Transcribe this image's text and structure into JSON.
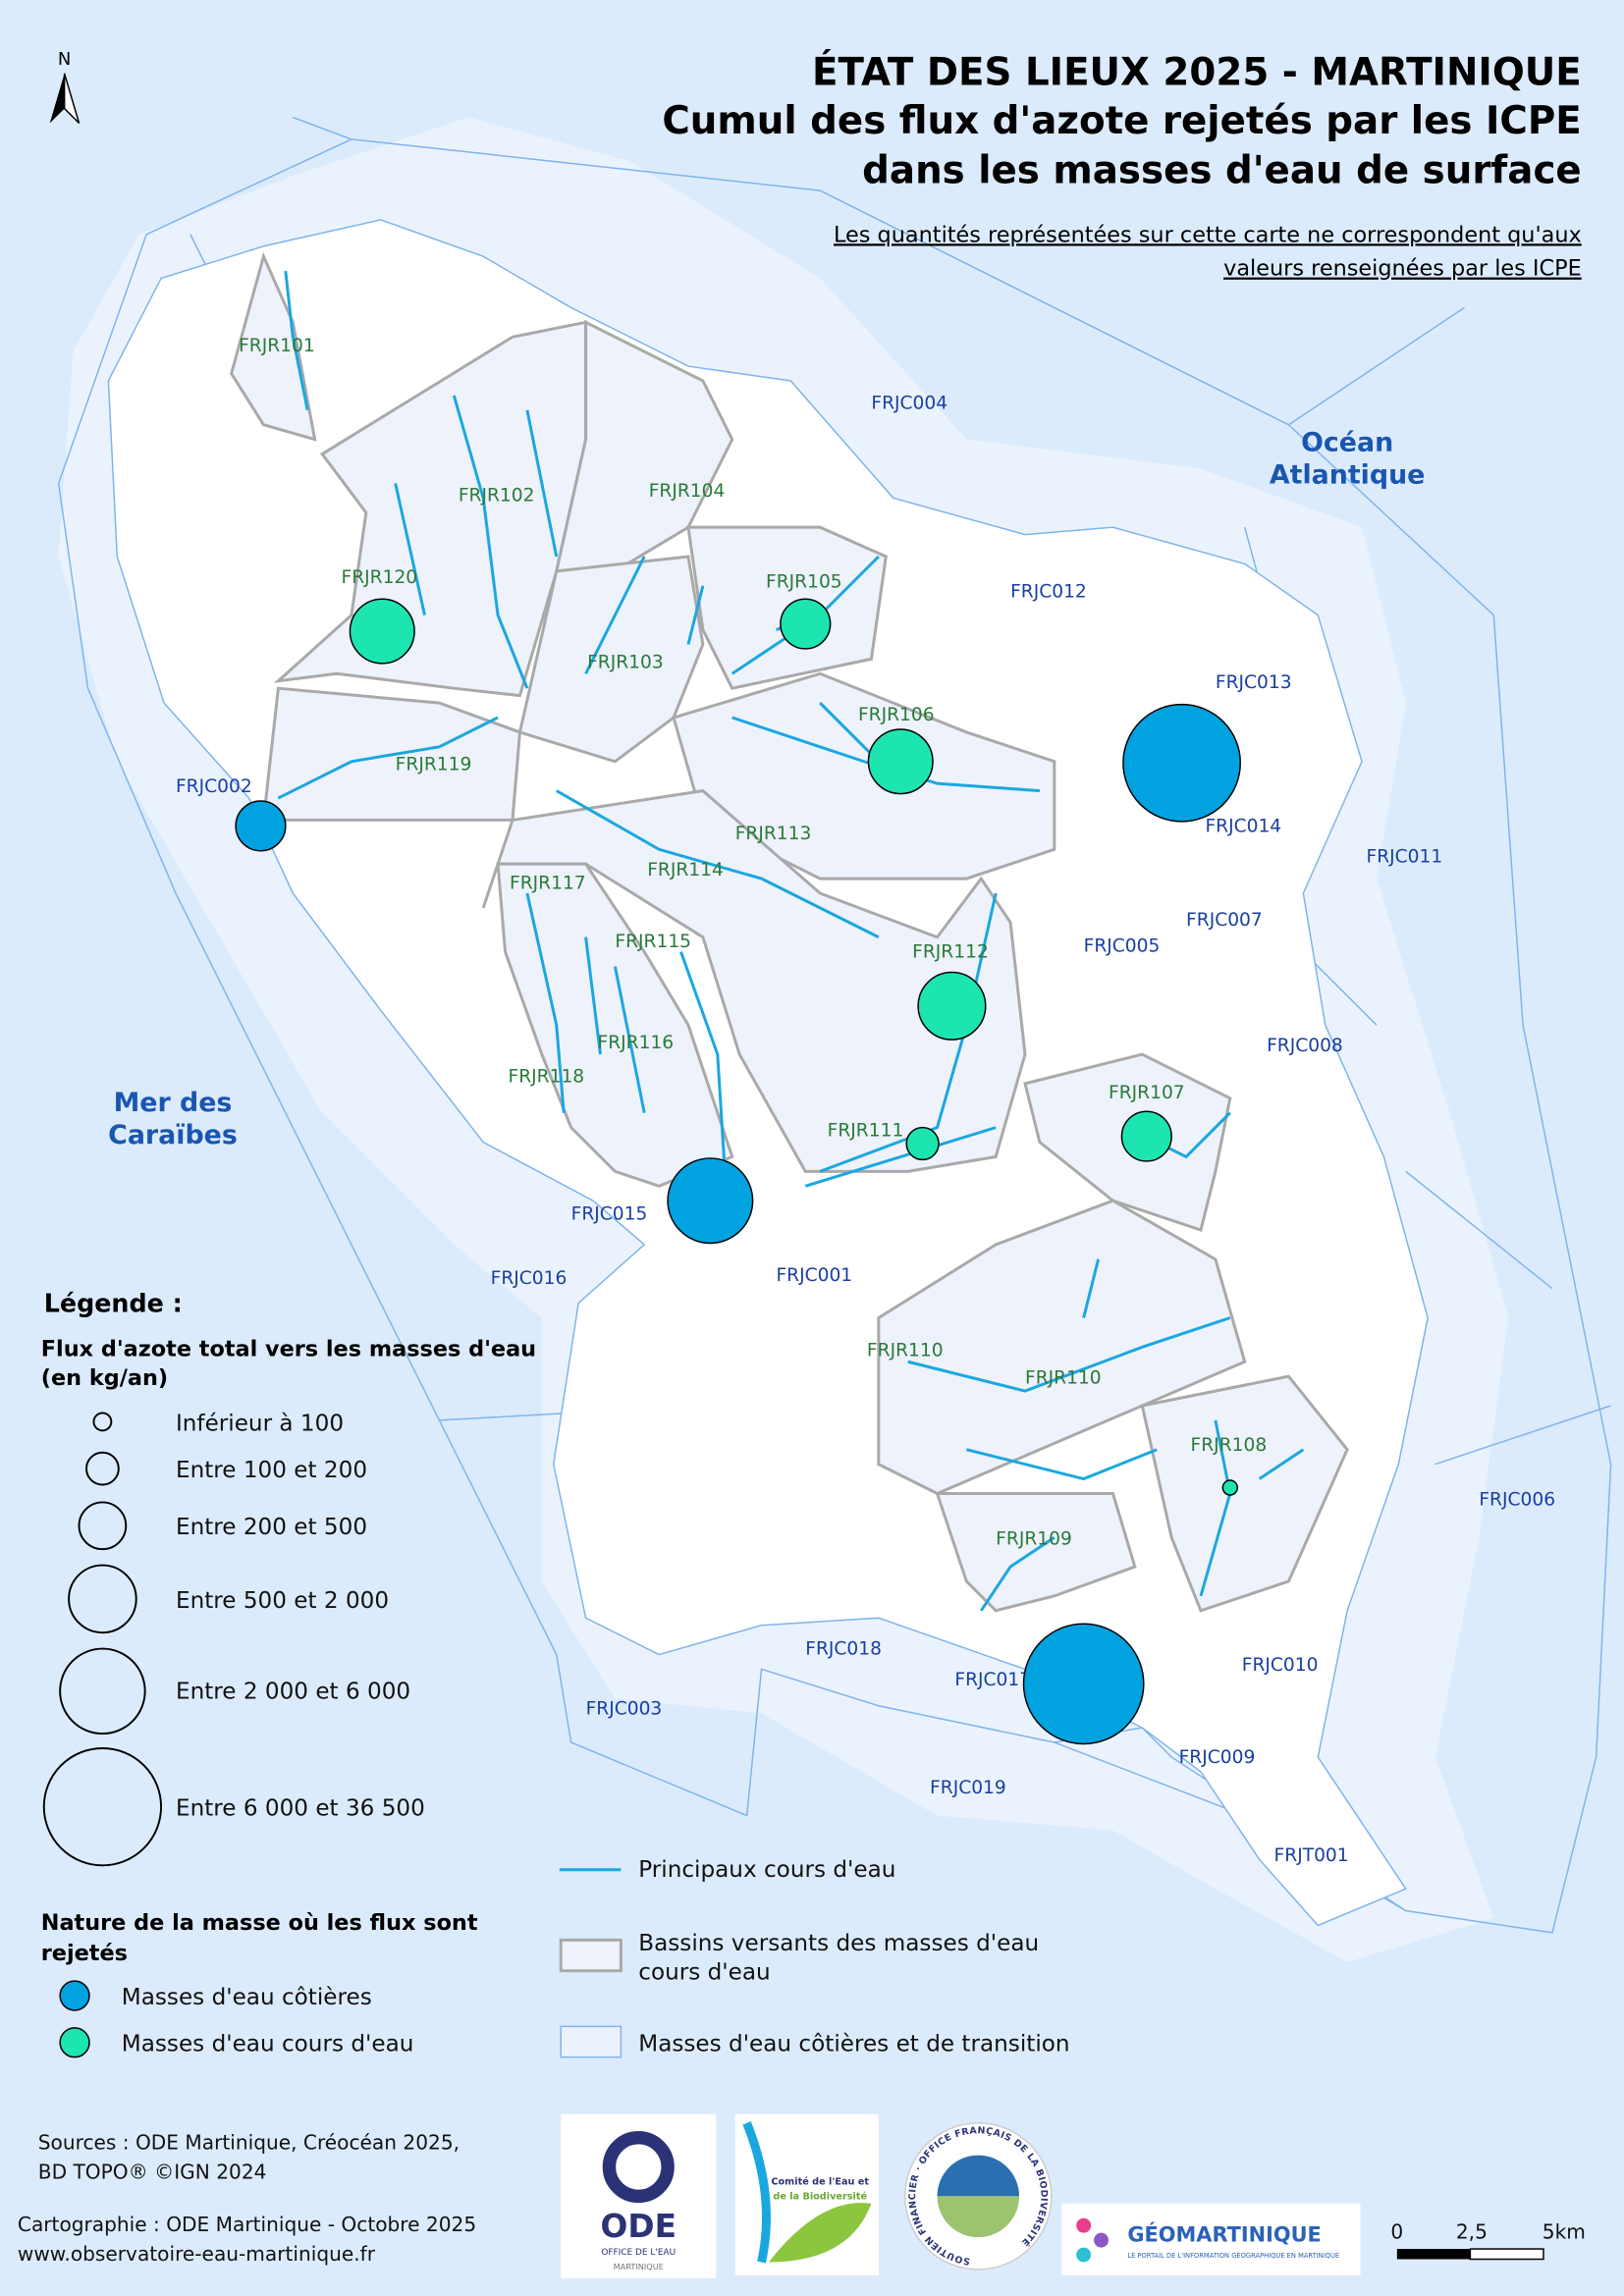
{
  "header": {
    "north_label": "N",
    "title_line1": "ÉTAT DES LIEUX 2025 - MARTINIQUE",
    "title_line2": "Cumul des flux d'azote rejetés par les ICPE",
    "title_line3": "dans les masses d'eau de surface",
    "note_line1": "Les quantités représentées sur cette carte ne correspondent qu'aux",
    "note_line2": "valeurs renseignées par les ICPE"
  },
  "seas": {
    "atlantic_line1": "Océan",
    "atlantic_line2": "Atlantique",
    "caribbean_line1": "Mer des",
    "caribbean_line2": "Caraïbes"
  },
  "coastal_labels": [
    "FRJC004",
    "FRJC012",
    "FRJC013",
    "FRJC014",
    "FRJC011",
    "FRJC007",
    "FRJC005",
    "FRJC008",
    "FRJC002",
    "FRJC015",
    "FRJC016",
    "FRJC001",
    "FRJC006",
    "FRJC018",
    "FRJC017",
    "FRJC010",
    "FRJC003",
    "FRJC009",
    "FRJC019",
    "FRJT001"
  ],
  "river_labels": [
    "FRJR101",
    "FRJR102",
    "FRJR104",
    "FRJR120",
    "FRJR105",
    "FRJR103",
    "FRJR106",
    "FRJR119",
    "FRJR113",
    "FRJR117",
    "FRJR114",
    "FRJR115",
    "FRJR112",
    "FRJR116",
    "FRJR118",
    "FRJR107",
    "FRJR111",
    "FRJR110",
    "FRJR110",
    "FRJR108",
    "FRJR109"
  ],
  "flux_points": [
    {
      "water_body": "FRJR120",
      "nature": "cours d'eau",
      "class": "Entre 500 et 2 000"
    },
    {
      "water_body": "FRJC002",
      "nature": "côtière",
      "class": "Entre 200 et 500"
    },
    {
      "water_body": "FRJR105",
      "nature": "cours d'eau",
      "class": "Entre 200 et 500"
    },
    {
      "water_body": "FRJR106",
      "nature": "cours d'eau",
      "class": "Entre 500 et 2 000"
    },
    {
      "water_body": "FRJC014",
      "nature": "côtière",
      "class": "Entre 6 000 et 36 500"
    },
    {
      "water_body": "FRJR112",
      "nature": "cours d'eau",
      "class": "Entre 500 et 2 000"
    },
    {
      "water_body": "FRJR111",
      "nature": "cours d'eau",
      "class": "Entre 100 et 200"
    },
    {
      "water_body": "FRJR107",
      "nature": "cours d'eau",
      "class": "Entre 200 et 500"
    },
    {
      "water_body": "FRJC015",
      "nature": "côtière",
      "class": "Entre 2 000 et 6 000"
    },
    {
      "water_body": "FRJR108",
      "nature": "cours d'eau",
      "class": "Inférieur à 100"
    },
    {
      "water_body": "FRJC017",
      "nature": "côtière",
      "class": "Entre 6 000 et 36 500"
    }
  ],
  "legend": {
    "title": "Légende :",
    "flux_title_line1": "Flux d'azote total vers les masses d'eau",
    "flux_title_line2": "(en kg/an)",
    "size_classes": [
      "Inférieur à 100",
      "Entre 100 et 200",
      "Entre 200 et 500",
      "Entre 500 et 2 000",
      "Entre 2 000 et 6 000",
      "Entre 6 000 et 36 500"
    ],
    "nature_title_line1": "Nature de la masse où les flux sont",
    "nature_title_line2": "rejetés",
    "nature_coastal": "Masses d'eau côtières",
    "nature_river": "Masses d'eau cours d'eau",
    "rivers": "Principaux cours d'eau",
    "basins_line1": "Bassins versants des masses d'eau",
    "basins_line2": "cours d'eau",
    "coastal_bodies": "Masses d'eau côtières et de transition"
  },
  "colors": {
    "coastal": "#00a3e0",
    "river": "#1de5b0",
    "river_line": "#1aa7e0",
    "basin_outline": "#a9a9a9",
    "coastal_outline": "#7fb3ec",
    "sea": "#dcebfc",
    "label_coastal": "#1a3f9e",
    "label_river": "#2a7a3a"
  },
  "footer": {
    "sources_line1": "Sources : ODE Martinique, Créocéan 2025,",
    "sources_line2": "BD TOPO® ©IGN 2024",
    "carto_line1": "Cartographie : ODE Martinique - Octobre 2025",
    "carto_line2": "www.observatoire-eau-martinique.fr",
    "logos": {
      "ode": "ODE",
      "ode_sub1": "OFFICE DE L'EAU",
      "ode_sub2": "MARTINIQUE",
      "ceb_line1": "Comité de l'Eau et",
      "ceb_line2": "de la Biodiversité",
      "ofb_ring": "SOUTIEN FINANCIER · OFFICE FRANÇAIS DE LA BIODIVERSITÉ",
      "geo": "GÉOMARTINIQUE",
      "geo_sub": "LE PORTAIL DE L'INFORMATION GÉOGRAPHIQUE EN MARTINIQUE"
    },
    "scale": {
      "tick0": "0",
      "tick1": "2,5",
      "tick2": "5km"
    }
  }
}
